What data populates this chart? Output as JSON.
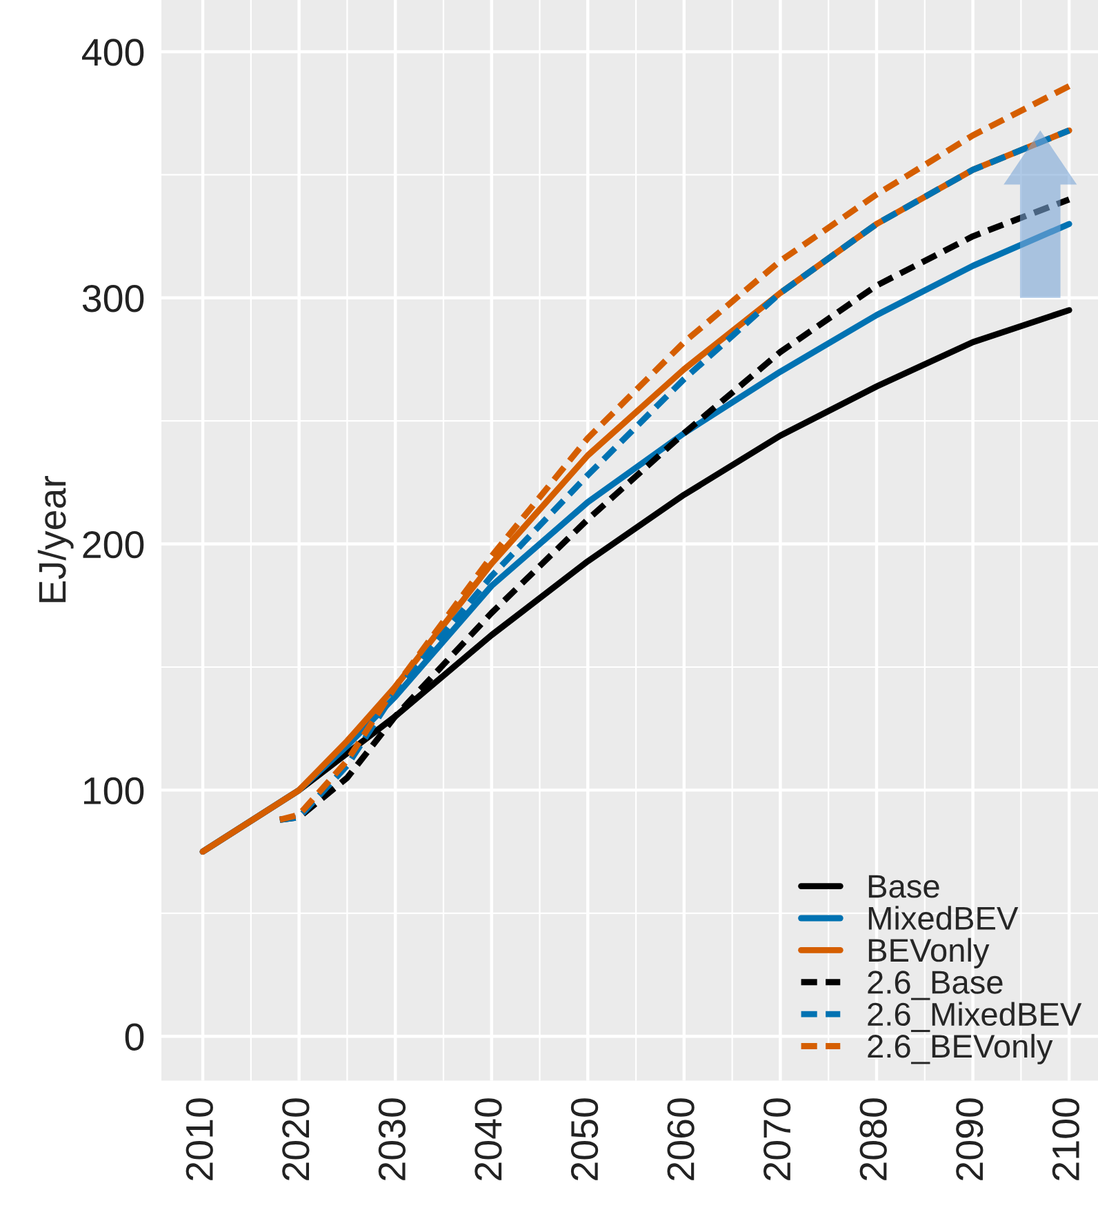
{
  "chart_data": {
    "type": "line",
    "ylabel": "EJ/year",
    "x": [
      2010,
      2020,
      2025,
      2030,
      2040,
      2050,
      2060,
      2070,
      2080,
      2090,
      2100
    ],
    "xlim": [
      2005.7,
      2103
    ],
    "ylim": [
      -18,
      421
    ],
    "xticks": [
      2010,
      2020,
      2030,
      2040,
      2050,
      2060,
      2070,
      2080,
      2090,
      2100
    ],
    "yticks": [
      0,
      100,
      200,
      300,
      400
    ],
    "grid": true,
    "legend": "bottom right",
    "series": [
      {
        "name": "Base",
        "color": "#000000",
        "line_style": "solid",
        "values": [
          75,
          100,
          115,
          130,
          163,
          193,
          220,
          244,
          264,
          282,
          295
        ]
      },
      {
        "name": "MixedBEV",
        "color": "#0072b2",
        "line_style": "solid",
        "values": [
          75,
          100,
          118,
          138,
          183,
          217,
          245,
          270,
          293,
          313,
          330
        ]
      },
      {
        "name": "BEVonly",
        "color": "#d55e00",
        "line_style": "solid",
        "values": [
          75,
          100,
          120,
          142,
          192,
          236,
          271,
          302,
          330,
          352,
          368
        ]
      },
      {
        "name": "2.6_Base",
        "color": "#000000",
        "line_style": "dashed",
        "x": [
          2018,
          2020,
          2025,
          2030,
          2040,
          2050,
          2060,
          2070,
          2080,
          2090,
          2100
        ],
        "values": [
          88,
          89,
          105,
          130,
          172,
          210,
          245,
          278,
          305,
          325,
          340
        ]
      },
      {
        "name": "2.6_MixedBEV",
        "color": "#0072b2",
        "line_style": "dashed",
        "x": [
          2018,
          2020,
          2025,
          2030,
          2040,
          2050,
          2060,
          2070,
          2080,
          2090,
          2100
        ],
        "values": [
          88,
          89,
          110,
          140,
          187,
          228,
          267,
          302,
          330,
          352,
          368
        ]
      },
      {
        "name": "2.6_BEVonly",
        "color": "#d55e00",
        "line_style": "dashed",
        "x": [
          2018,
          2020,
          2025,
          2030,
          2040,
          2050,
          2060,
          2070,
          2080,
          2090,
          2100
        ],
        "values": [
          88,
          90,
          112,
          142,
          195,
          243,
          282,
          315,
          342,
          366,
          386
        ]
      }
    ]
  }
}
